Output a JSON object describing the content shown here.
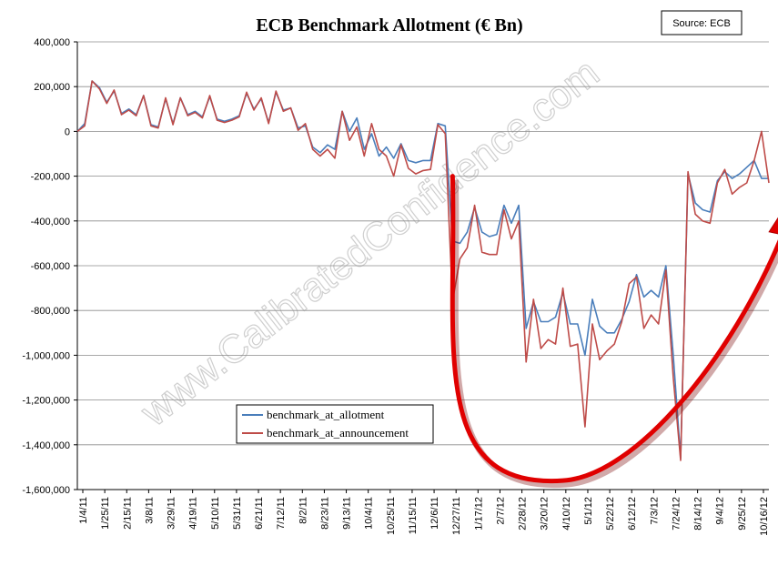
{
  "chart_data": {
    "type": "line",
    "title": "ECB Benchmark Allotment (€ Bn)",
    "source": "Source: ECB",
    "watermark": "www.CalibratedConfidence.com",
    "ylim": [
      -1600000,
      400000
    ],
    "yticks": [
      400000,
      200000,
      0,
      -200000,
      -400000,
      -600000,
      -800000,
      -1000000,
      -1200000,
      -1400000,
      -1600000
    ],
    "ytick_labels": [
      "400,000",
      "200,000",
      "0",
      "-200,000",
      "-400,000",
      "-600,000",
      "-800,000",
      "-1,000,000",
      "-1,200,000",
      "-1,400,000",
      "-1,600,000"
    ],
    "x_tick_labels": [
      "1/4/11",
      "1/25/11",
      "2/15/11",
      "3/8/11",
      "3/29/11",
      "4/19/11",
      "5/10/11",
      "5/31/11",
      "6/21/11",
      "7/12/11",
      "8/2/11",
      "8/23/11",
      "9/13/11",
      "10/4/11",
      "10/25/11",
      "11/15/11",
      "12/6/11",
      "12/27/11",
      "1/17/12",
      "2/7/12",
      "2/28/12",
      "3/20/12",
      "4/10/12",
      "5/1/12",
      "5/22/12",
      "6/12/12",
      "7/3/12",
      "7/24/12",
      "8/14/12",
      "9/4/12",
      "9/25/12",
      "10/16/12"
    ],
    "grid": true,
    "legend_placement": "lower-left",
    "series": [
      {
        "name": "benchmark_at_allotment",
        "color": "#4a7ebb",
        "values": [
          0,
          35000,
          225000,
          195000,
          130000,
          180000,
          80000,
          100000,
          75000,
          160000,
          30000,
          20000,
          145000,
          35000,
          150000,
          75000,
          90000,
          65000,
          155000,
          55000,
          45000,
          55000,
          70000,
          170000,
          100000,
          145000,
          40000,
          175000,
          95000,
          105000,
          15000,
          25000,
          -70000,
          -95000,
          -60000,
          -80000,
          90000,
          0,
          60000,
          -80000,
          -10000,
          -110000,
          -70000,
          -120000,
          -55000,
          -130000,
          -140000,
          -130000,
          -130000,
          35000,
          25000,
          -490000,
          -500000,
          -450000,
          -340000,
          -450000,
          -470000,
          -460000,
          -330000,
          -410000,
          -330000,
          -880000,
          -760000,
          -850000,
          -850000,
          -830000,
          -720000,
          -860000,
          -860000,
          -1000000,
          -750000,
          -870000,
          -900000,
          -900000,
          -840000,
          -760000,
          -640000,
          -740000,
          -710000,
          -740000,
          -600000,
          -1000000,
          -1460000,
          -190000,
          -320000,
          -350000,
          -360000,
          -220000,
          -180000,
          -210000,
          -190000,
          -160000,
          -130000,
          -210000,
          -210000
        ],
        "x_index_span": [
          0,
          96
        ]
      },
      {
        "name": "benchmark_at_announcement",
        "color": "#be4b48",
        "values": [
          0,
          25000,
          225000,
          190000,
          125000,
          185000,
          75000,
          95000,
          70000,
          160000,
          25000,
          15000,
          150000,
          30000,
          150000,
          70000,
          85000,
          60000,
          160000,
          50000,
          40000,
          50000,
          65000,
          175000,
          95000,
          150000,
          35000,
          180000,
          90000,
          105000,
          5000,
          35000,
          -80000,
          -110000,
          -80000,
          -120000,
          90000,
          -40000,
          20000,
          -110000,
          35000,
          -80000,
          -110000,
          -200000,
          -60000,
          -165000,
          -190000,
          -175000,
          -170000,
          30000,
          -10000,
          -760000,
          -570000,
          -520000,
          -330000,
          -540000,
          -550000,
          -550000,
          -350000,
          -480000,
          -400000,
          -1030000,
          -750000,
          -970000,
          -930000,
          -950000,
          -700000,
          -960000,
          -950000,
          -1320000,
          -860000,
          -1020000,
          -980000,
          -950000,
          -850000,
          -680000,
          -650000,
          -880000,
          -820000,
          -860000,
          -620000,
          -1100000,
          -1470000,
          -180000,
          -370000,
          -400000,
          -410000,
          -230000,
          -170000,
          -280000,
          -250000,
          -230000,
          -130000,
          0,
          -230000
        ],
        "x_index_span": [
          0,
          96
        ]
      }
    ],
    "annotation": {
      "type": "arrow",
      "description_points_data": [
        [
          51,
          -200000
        ],
        [
          66,
          -1560000
        ],
        [
          96,
          -400000
        ]
      ]
    }
  }
}
